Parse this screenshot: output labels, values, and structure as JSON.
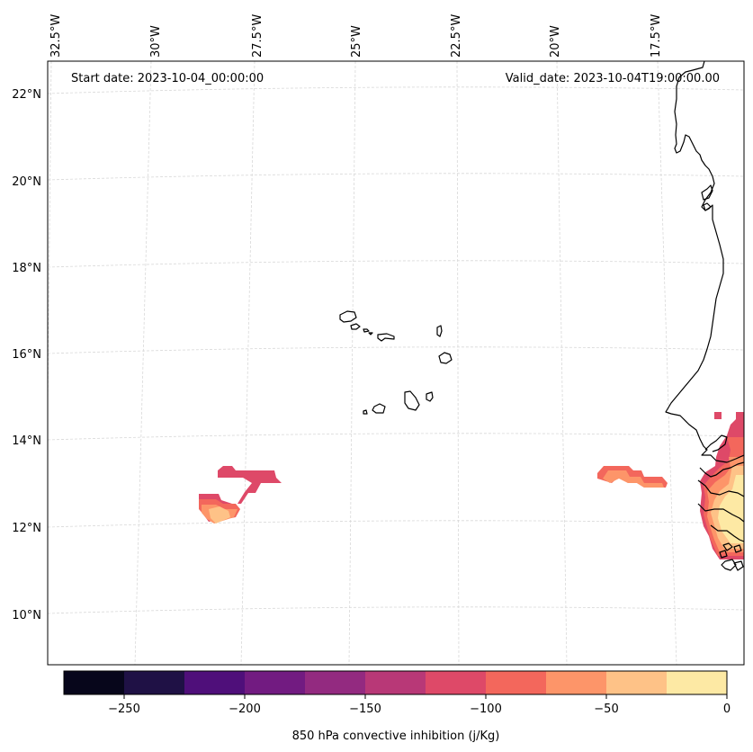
{
  "map": {
    "start_date": "Start date: 2023-10-04_00:00:00",
    "valid_date": "Valid_date: 2023-10-04T19:00:00.00",
    "lon_labels": [
      "32.5°W",
      "30°W",
      "27.5°W",
      "25°W",
      "22.5°W",
      "20°W",
      "17.5°W"
    ],
    "lat_labels": [
      "22°N",
      "20°N",
      "18°N",
      "16°N",
      "14°N",
      "12°N",
      "10°N"
    ]
  },
  "colorbar": {
    "label": "850 hPa convective inhibition (j/Kg)",
    "ticks": [
      "−250",
      "−200",
      "−150",
      "−100",
      "−50",
      "0"
    ],
    "colors": [
      "#07061b",
      "#1f1145",
      "#4f0f7a",
      "#721b81",
      "#932a80",
      "#b83877",
      "#de4968",
      "#f3675c",
      "#fd9569",
      "#fec287",
      "#fde9a4"
    ]
  }
}
